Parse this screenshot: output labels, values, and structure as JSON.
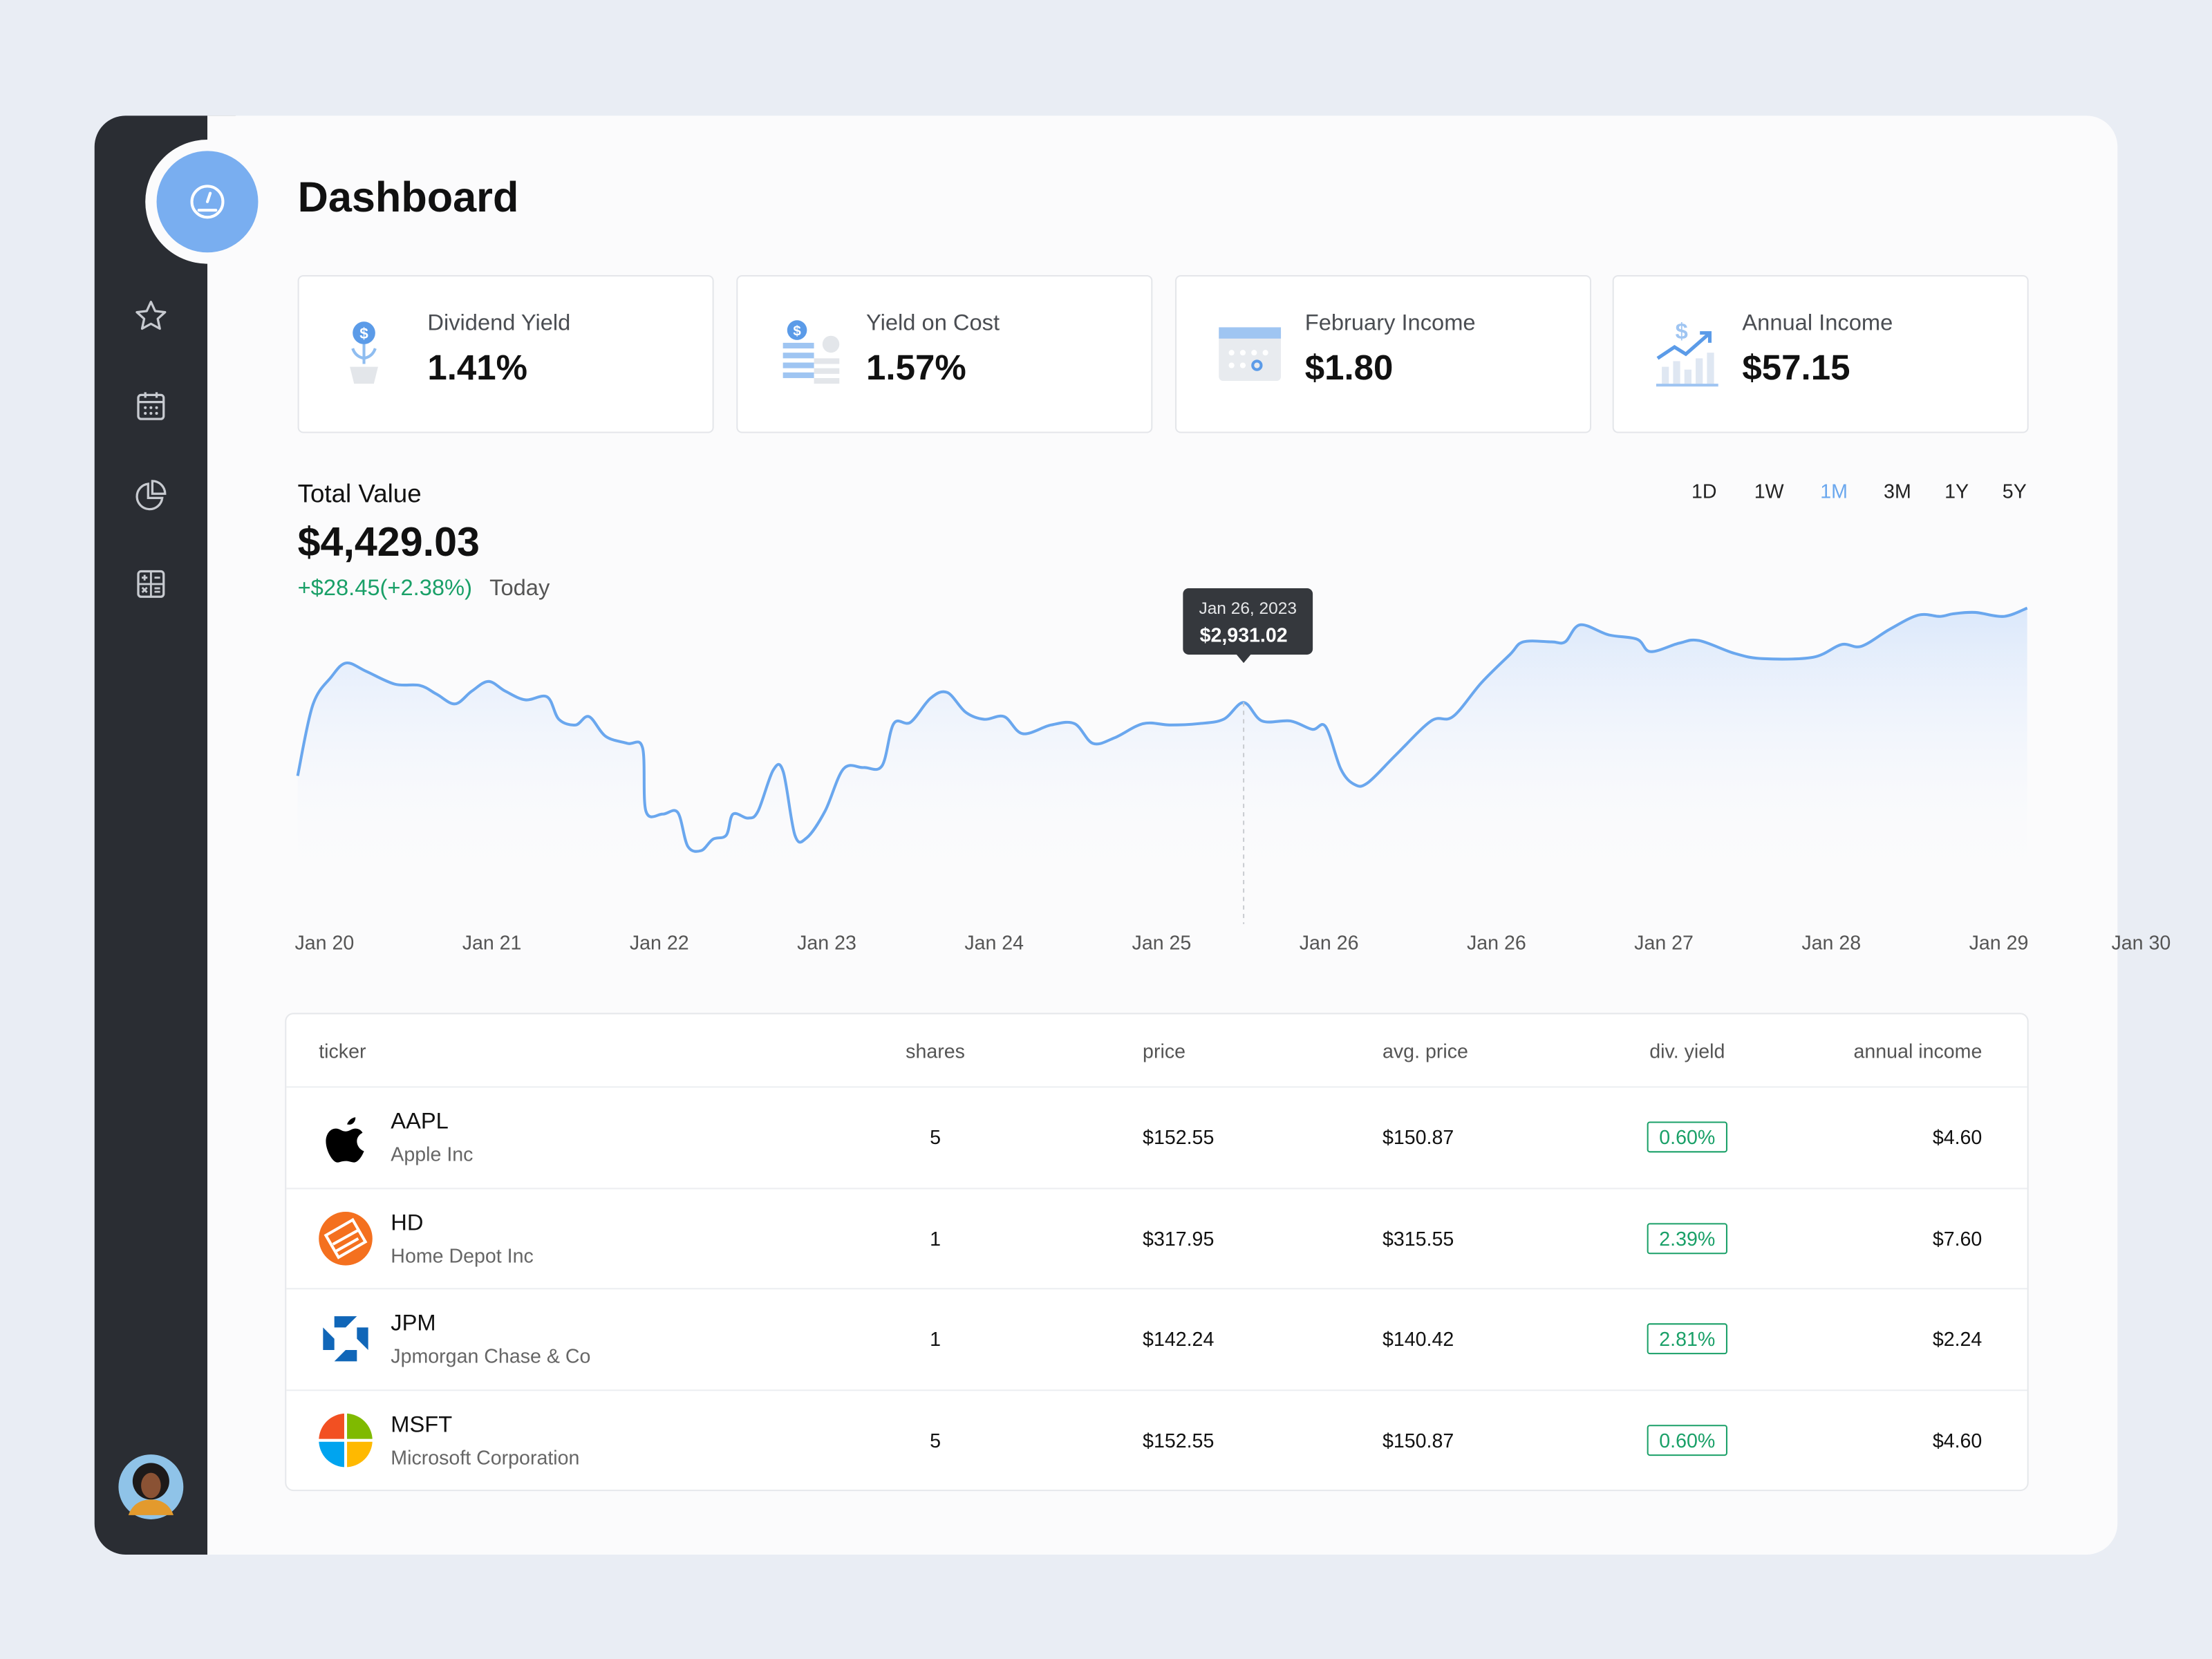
{
  "header": {
    "title": "Dashboard"
  },
  "metrics": [
    {
      "label": "Dividend Yield",
      "value": "1.41%"
    },
    {
      "label": "Yield on Cost",
      "value": "1.57%"
    },
    {
      "label": "February Income",
      "value": "$1.80"
    },
    {
      "label": "Annual Income",
      "value": "$57.15"
    }
  ],
  "total_value": {
    "label": "Total Value",
    "value": "$4,429.03",
    "change": "+$28.45(+2.38%)",
    "period": "Today"
  },
  "ranges": [
    "1D",
    "1W",
    "1M",
    "3M",
    "1Y",
    "5Y"
  ],
  "active_range": "1M",
  "chart_data": {
    "type": "line",
    "color": "#6aa7ee",
    "x": [
      -0.16,
      -0.07,
      0.04,
      0.13,
      0.25,
      0.42,
      0.57,
      0.67,
      0.78,
      0.88,
      0.98,
      1.08,
      1.2,
      1.33,
      1.4,
      1.5,
      1.58,
      1.68,
      1.81,
      1.9,
      1.92,
      2.02,
      2.11,
      2.17,
      2.25,
      2.32,
      2.4,
      2.44,
      2.53,
      2.59,
      2.68,
      2.74,
      2.81,
      2.88,
      2.99,
      3.1,
      3.22,
      3.33,
      3.4,
      3.5,
      3.62,
      3.72,
      3.83,
      3.94,
      4.06,
      4.17,
      4.34,
      4.48,
      4.59,
      4.72,
      4.89,
      5.05,
      5.22,
      5.37,
      5.49,
      5.6,
      5.77,
      5.9,
      5.98,
      6.07,
      6.15,
      6.23,
      6.4,
      6.61,
      6.74,
      6.91,
      7.08,
      7.16,
      7.33,
      7.41,
      7.5,
      7.67,
      7.84,
      7.92,
      8.09,
      8.21,
      8.42,
      8.59,
      8.89,
      9.06,
      9.18,
      9.35,
      9.52,
      9.65,
      9.73,
      9.86,
      10.03,
      10.17
    ],
    "values": [
      2711,
      2922,
      3006,
      3048,
      3023,
      2985,
      2981,
      2955,
      2926,
      2964,
      2993,
      2964,
      2938,
      2947,
      2880,
      2863,
      2888,
      2829,
      2808,
      2795,
      2606,
      2597,
      2602,
      2501,
      2488,
      2522,
      2534,
      2597,
      2585,
      2606,
      2728,
      2724,
      2534,
      2526,
      2606,
      2732,
      2736,
      2741,
      2867,
      2871,
      2943,
      2960,
      2901,
      2880,
      2888,
      2837,
      2863,
      2867,
      2808,
      2825,
      2867,
      2863,
      2867,
      2880,
      2930,
      2875,
      2875,
      2850,
      2858,
      2732,
      2686,
      2690,
      2774,
      2875,
      2888,
      2989,
      3073,
      3111,
      3111,
      3111,
      3162,
      3132,
      3119,
      3082,
      3107,
      3115,
      3077,
      3061,
      3065,
      3103,
      3098,
      3149,
      3191,
      3187,
      3195,
      3199,
      3187,
      3212
    ],
    "xlim": [
      -0.16,
      10.17
    ],
    "ylim": [
      2450,
      3250
    ],
    "xticks": [
      {
        "value": 0,
        "label": "Jan 20"
      },
      {
        "value": 1,
        "label": "Jan 21"
      },
      {
        "value": 2,
        "label": "Jan 22"
      },
      {
        "value": 3,
        "label": "Jan 23"
      },
      {
        "value": 4,
        "label": "Jan 24"
      },
      {
        "value": 5,
        "label": "Jan 25"
      },
      {
        "value": 6,
        "label": "Jan 26"
      },
      {
        "value": 7,
        "label": "Jan 26"
      },
      {
        "value": 8,
        "label": "Jan 27"
      },
      {
        "value": 9,
        "label": "Jan 28"
      },
      {
        "value": 10,
        "label": "Jan 29"
      },
      {
        "value": 10.85,
        "label": "Jan 30"
      }
    ],
    "grid": false,
    "tooltip": {
      "x": 5.49,
      "value": 2931.02,
      "label": "Jan 26, 2023",
      "value_label": "$2,931.02"
    }
  },
  "table": {
    "columns": [
      "ticker",
      "shares",
      "price",
      "avg. price",
      "div. yield",
      "annual income"
    ],
    "rows": [
      [
        "AAPL",
        "Apple Inc",
        "5",
        "$152.55",
        "$150.87",
        "0.60%",
        "$4.60"
      ],
      [
        "HD",
        "Home Depot Inc",
        "1",
        "$317.95",
        "$315.55",
        "2.39%",
        "$7.60"
      ],
      [
        "JPM",
        "Jpmorgan Chase & Co",
        "1",
        "$142.24",
        "$140.42",
        "2.81%",
        "$2.24"
      ],
      [
        "MSFT",
        "Microsoft Corporation",
        "5",
        "$152.55",
        "$150.87",
        "0.60%",
        "$4.60"
      ]
    ]
  }
}
